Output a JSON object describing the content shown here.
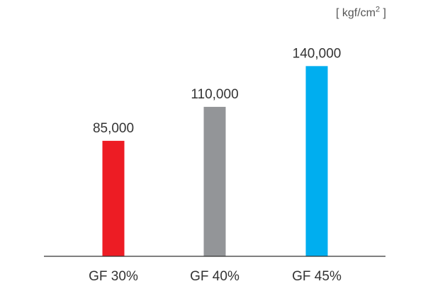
{
  "chart_data": {
    "type": "bar",
    "unit": {
      "prefix": "[ kgf/cm",
      "superscript": "2",
      "suffix": " ]"
    },
    "categories": [
      "GF 30%",
      "GF 40%",
      "GF 45%"
    ],
    "values": [
      85000,
      110000,
      140000
    ],
    "value_labels": [
      "85,000",
      "110,000",
      "140,000"
    ],
    "colors": [
      "#ed1c24",
      "#939598",
      "#00aeef"
    ],
    "ylim": [
      0,
      185000
    ],
    "grid": false,
    "legend": "none"
  }
}
